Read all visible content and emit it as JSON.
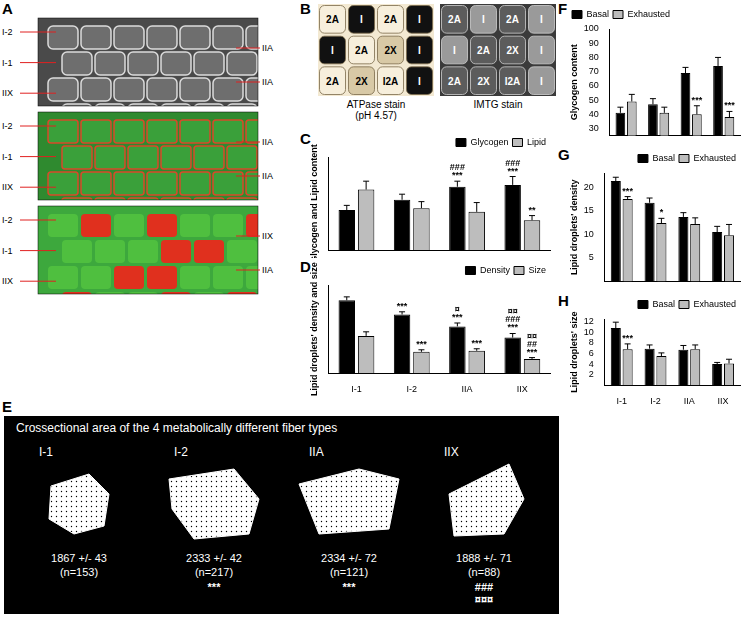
{
  "figure": {
    "panel_A": {
      "letter": "A",
      "images": [
        {
          "left_labels": [
            "I-2",
            "I-1",
            "IIX"
          ],
          "right_labels": [
            "IIA",
            "IIA"
          ]
        },
        {
          "left_labels": [
            "I-2",
            "I-1",
            "IIX"
          ],
          "right_labels": [
            "IIA",
            "IIA"
          ]
        },
        {
          "left_labels": [
            "I-2",
            "I-1",
            "IIX"
          ],
          "right_labels": [
            "IIX",
            "IIA"
          ]
        }
      ]
    },
    "panel_B": {
      "letter": "B",
      "images": [
        {
          "caption": [
            "ATPase stain",
            "(pH 4.57)"
          ],
          "fibers": [
            "2A",
            "I",
            "2A",
            "I",
            "I",
            "2A",
            "2X",
            "I",
            "2A",
            "2X",
            "I2A",
            "I"
          ]
        },
        {
          "caption": [
            "IMTG stain"
          ],
          "fibers": [
            "2A",
            "I",
            "2A",
            "I",
            "I",
            "2A",
            "2X",
            "I",
            "2A",
            "2X",
            "I2A",
            "I"
          ]
        }
      ]
    },
    "panel_E": {
      "letter": "E",
      "title": "Crossectional area of the 4 metabolically different fiber types",
      "fibers": [
        {
          "type": "I-1",
          "area": "1867 +/- 43",
          "n": "(n=153)",
          "marks": []
        },
        {
          "type": "I-2",
          "area": "2333 +/- 42",
          "n": "(n=217)",
          "marks": [
            "***"
          ]
        },
        {
          "type": "IIA",
          "area": "2334 +/- 72",
          "n": "(n=121)",
          "marks": [
            "***"
          ]
        },
        {
          "type": "IIX",
          "area": "1888 +/- 71",
          "n": "(n=88)",
          "marks": [
            "###",
            "¤¤¤"
          ]
        }
      ]
    }
  },
  "chart_data": [
    {
      "panel": "C",
      "type": "bar",
      "y_label": "Glycogen and Lipid content",
      "categories": [
        "I-1",
        "I-2",
        "IIA",
        "IIX"
      ],
      "series": [
        {
          "name": "Glycogen",
          "color": "#000000",
          "values": [
            43,
            54,
            68,
            70
          ],
          "errors": [
            5,
            6,
            6,
            9
          ],
          "annotations": [
            [],
            [],
            [
              "###",
              "***"
            ],
            [
              "###",
              "***"
            ]
          ]
        },
        {
          "name": "Lipid",
          "color": "#bdbdbd",
          "values": [
            65,
            45,
            41,
            32
          ],
          "errors": [
            9,
            7,
            10,
            5
          ],
          "annotations": [
            [],
            [],
            [],
            [
              "**"
            ]
          ]
        }
      ],
      "ylim": [
        0,
        100
      ],
      "tick_labels": false,
      "legend": "upper right",
      "grid": false
    },
    {
      "panel": "D",
      "type": "bar",
      "y_label": "Lipid droplets' density and size",
      "categories": [
        "I-1",
        "I-2",
        "IIA",
        "IIX"
      ],
      "series": [
        {
          "name": "Density",
          "color": "#000000",
          "values": [
            21.5,
            17.3,
            13.8,
            10.5
          ],
          "errors": [
            1,
            0.8,
            1,
            1.2
          ],
          "annotations": [
            [],
            [
              "***"
            ],
            [
              "¤",
              "***"
            ],
            [
              "¤¤",
              "###",
              "***"
            ]
          ]
        },
        {
          "name": "Size",
          "color": "#bdbdbd",
          "values": [
            11,
            6.3,
            6.6,
            4.2
          ],
          "errors": [
            1.2,
            0.6,
            0.6,
            0.4
          ],
          "annotations": [
            [],
            [
              "***"
            ],
            [
              "***"
            ],
            [
              "¤¤",
              "##",
              "***"
            ]
          ]
        }
      ],
      "ylim": [
        0,
        26
      ],
      "tick_labels": "x",
      "legend": "upper right",
      "grid": false
    },
    {
      "panel": "F",
      "type": "bar",
      "y_label": "Glycogen content",
      "categories": [
        "I-1",
        "I-2",
        "IIA",
        "IIX"
      ],
      "series": [
        {
          "name": "Basal",
          "color": "#000000",
          "values": [
            41,
            47,
            69,
            74
          ],
          "errors": [
            4,
            4,
            4,
            6
          ],
          "annotations": [
            [],
            [],
            [],
            []
          ]
        },
        {
          "name": "Exhausted",
          "color": "#bdbdbd",
          "values": [
            49,
            41,
            40,
            38
          ],
          "errors": [
            5,
            4,
            6,
            4
          ],
          "annotations": [
            [],
            [],
            [
              "***"
            ],
            [
              "***"
            ]
          ]
        }
      ],
      "ylim": [
        25,
        100
      ],
      "yticks": [
        30,
        40,
        50,
        60,
        70,
        80,
        90,
        100
      ],
      "tick_labels": "y",
      "legend": "upper left",
      "grid": false
    },
    {
      "panel": "G",
      "type": "bar",
      "y_label": "Lipid droplets' density",
      "categories": [
        "I-1",
        "I-2",
        "IIA",
        "IIX"
      ],
      "series": [
        {
          "name": "Basal",
          "color": "#000000",
          "values": [
            21.3,
            16.7,
            13.7,
            10.5
          ],
          "errors": [
            0.8,
            1,
            0.9,
            1.2
          ],
          "annotations": [
            [],
            [],
            [],
            []
          ]
        },
        {
          "name": "Exhausted",
          "color": "#bdbdbd",
          "values": [
            17.5,
            12.4,
            12.2,
            9.8
          ],
          "errors": [
            0.5,
            1,
            1.3,
            2.3
          ],
          "annotations": [
            [
              "***"
            ],
            [
              "*"
            ],
            [],
            []
          ]
        }
      ],
      "ylim": [
        0,
        23
      ],
      "yticks": [
        5,
        10,
        15,
        20
      ],
      "tick_labels": "y",
      "legend": "upper right",
      "grid": false
    },
    {
      "panel": "H",
      "type": "bar",
      "y_label": "Lipid droplets' size",
      "categories": [
        "I-1",
        "I-2",
        "IIA",
        "IIX"
      ],
      "series": [
        {
          "name": "Basal",
          "color": "#000000",
          "values": [
            10.8,
            6.9,
            6.7,
            4.0
          ],
          "errors": [
            1.1,
            0.7,
            0.8,
            0.3
          ],
          "annotations": [
            [],
            [],
            [],
            []
          ]
        },
        {
          "name": "Exhausted",
          "color": "#bdbdbd",
          "values": [
            6.8,
            5.5,
            6.8,
            4.1
          ],
          "errors": [
            1,
            0.6,
            0.8,
            0.8
          ],
          "annotations": [
            [
              "***"
            ],
            [],
            [],
            []
          ]
        }
      ],
      "ylim": [
        0,
        12.5
      ],
      "yticks": [
        2,
        4,
        6,
        8,
        10,
        12
      ],
      "legend": "upper right",
      "grid": false
    }
  ]
}
